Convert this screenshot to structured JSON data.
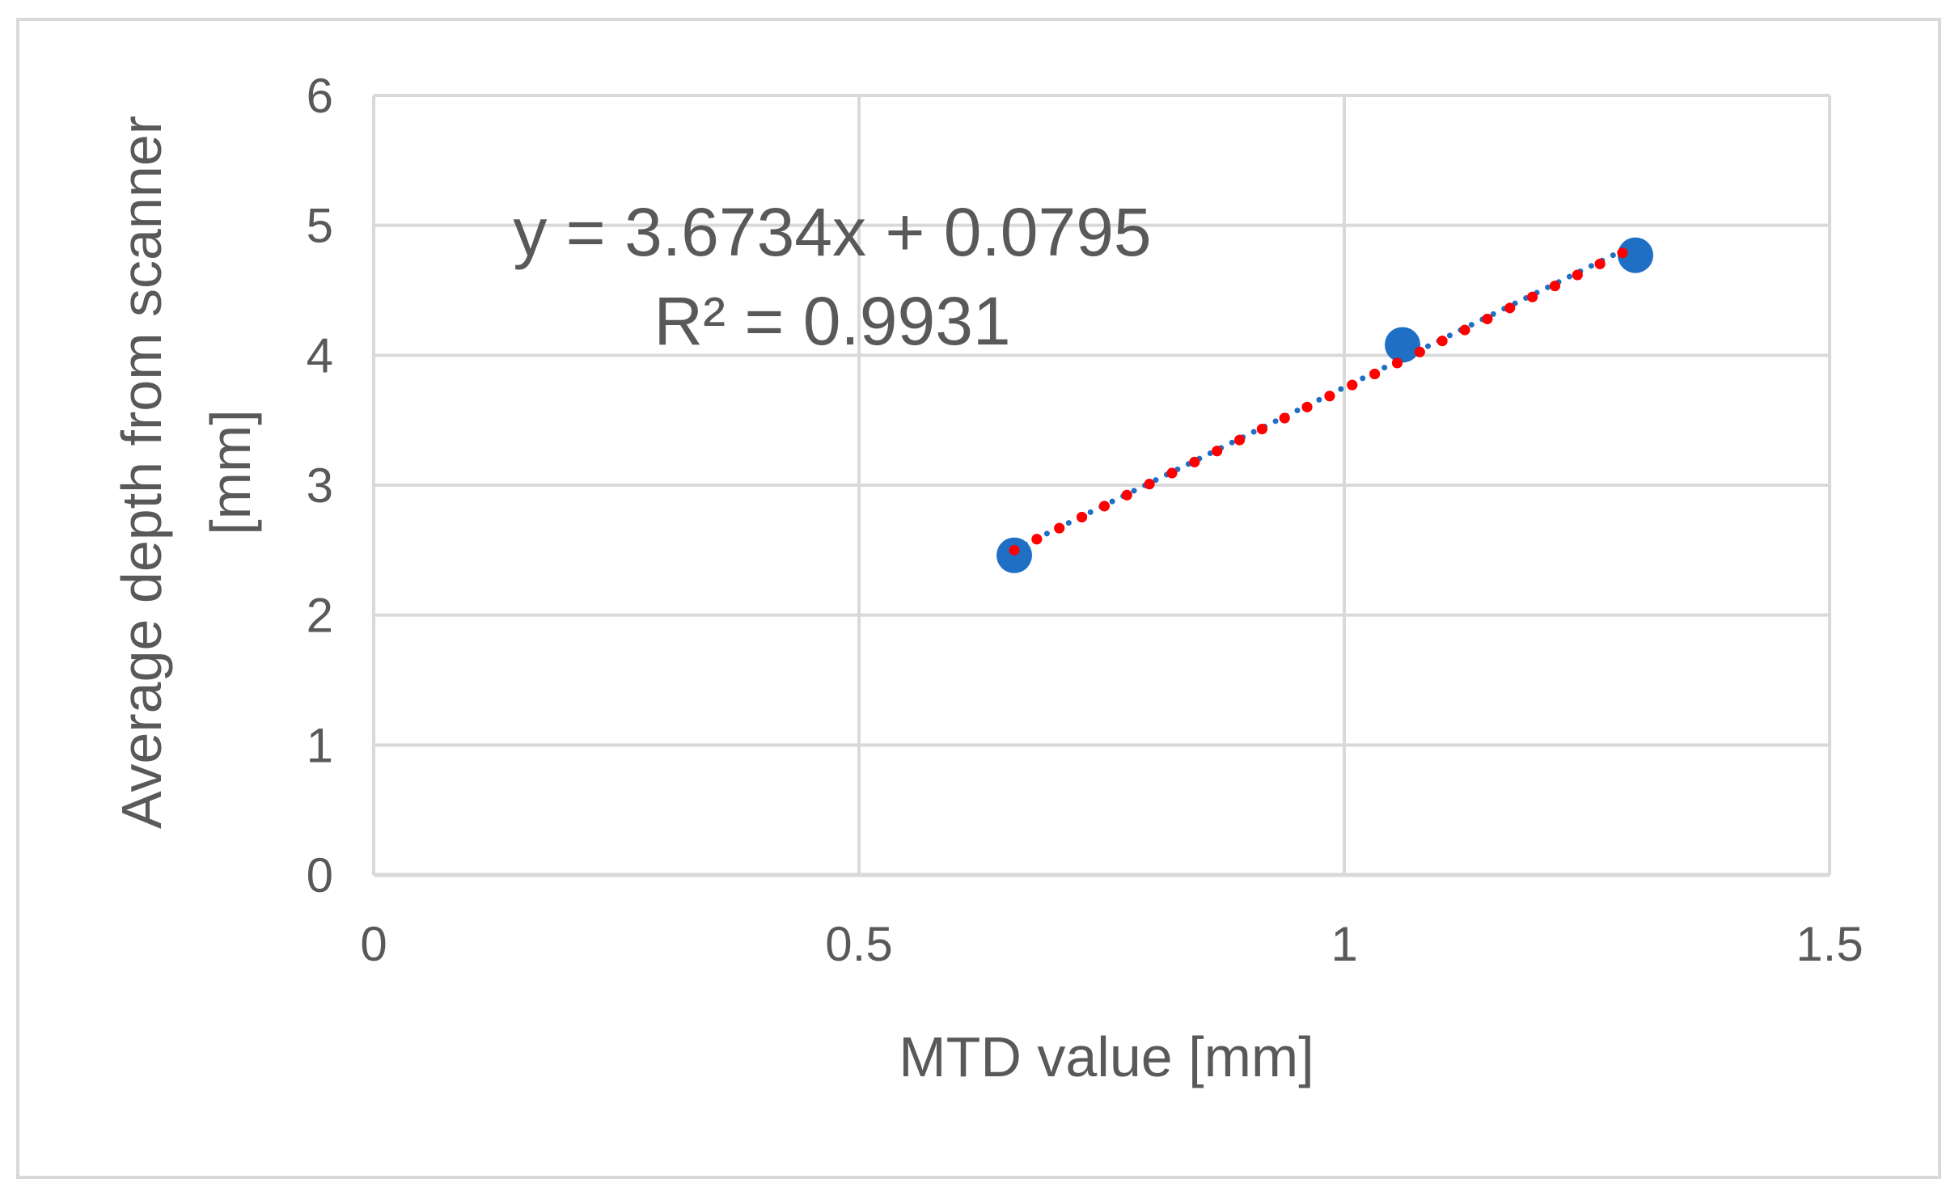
{
  "chart_data": {
    "type": "scatter",
    "title": "",
    "xlabel": "MTD value [mm]",
    "ylabel_lines": [
      "Average depth from scanner",
      "[mm]"
    ],
    "xlim": [
      0,
      1.5
    ],
    "ylim": [
      0,
      6
    ],
    "xticks": [
      0,
      0.5,
      1,
      1.5
    ],
    "xtick_labels": [
      "0",
      "0.5",
      "1",
      "1.5"
    ],
    "yticks": [
      0,
      1,
      2,
      3,
      4,
      5,
      6
    ],
    "ytick_labels": [
      "0",
      "1",
      "2",
      "3",
      "4",
      "5",
      "6"
    ],
    "grid": true,
    "legend": "none",
    "series": [
      {
        "points": [
          {
            "x": 0.66,
            "y": 2.46
          },
          {
            "x": 1.06,
            "y": 4.08
          },
          {
            "x": 1.3,
            "y": 4.77
          }
        ],
        "color": "#1f6fc4"
      }
    ],
    "trendlines": [
      {
        "kind": "linear-fit",
        "x_range": [
          0.66,
          1.3
        ],
        "slope": 3.6734,
        "intercept": 0.0795,
        "color": "#1f6fc4",
        "style": "dotted"
      },
      {
        "kind": "reference",
        "x_range": [
          0.66,
          1.29
        ],
        "y_range": [
          2.5,
          4.8
        ],
        "color": "#ff0000",
        "style": "dotted"
      }
    ],
    "annotations": {
      "equation": "y = 3.6734x + 0.0795",
      "r_squared": "R² = 0.9931"
    }
  }
}
